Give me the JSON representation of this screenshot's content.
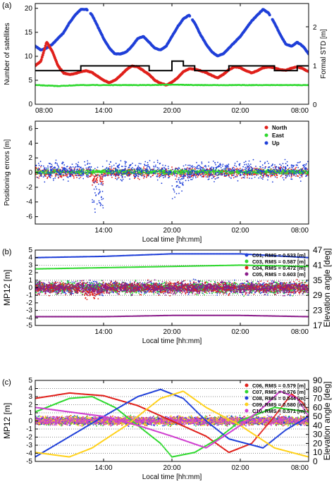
{
  "chart_data": [
    {
      "id": "a1",
      "panel_label": "(a)",
      "type": "line",
      "xlim": [
        0,
        24
      ],
      "x_ticks": [
        0,
        6,
        12,
        18,
        24
      ],
      "x_tick_labels": [
        "08:00",
        "14:00",
        "20:00",
        "02:00",
        "08:00"
      ],
      "ylabel": "Number of satellites",
      "ylim": [
        0,
        21
      ],
      "y_ticks": [
        0,
        5,
        10,
        15,
        20
      ],
      "y2label": "Formal STD [m]",
      "y2lim": [
        0,
        2.6
      ],
      "y2_ticks": [
        0,
        1,
        2
      ],
      "grid": false,
      "series": [
        {
          "axis": "right",
          "color": "#1f3fd8",
          "style": "dots",
          "points": [
            [
              0,
              1.5
            ],
            [
              0.5,
              1.4
            ],
            [
              1,
              1.45
            ],
            [
              1.5,
              1.55
            ],
            [
              2,
              1.7
            ],
            [
              2.5,
              1.85
            ],
            [
              3,
              2.1
            ],
            [
              3.5,
              2.3
            ],
            [
              4,
              2.45
            ],
            [
              4.5,
              2.45
            ],
            [
              5,
              2.3
            ],
            [
              5.5,
              2.0
            ],
            [
              6,
              1.7
            ],
            [
              6.5,
              1.45
            ],
            [
              7,
              1.3
            ],
            [
              7.5,
              1.3
            ],
            [
              8,
              1.35
            ],
            [
              8.5,
              1.5
            ],
            [
              9,
              1.7
            ],
            [
              9.5,
              1.75
            ],
            [
              10,
              1.6
            ],
            [
              10.5,
              1.45
            ],
            [
              11,
              1.4
            ],
            [
              11.5,
              1.5
            ],
            [
              12,
              1.75
            ],
            [
              12.5,
              2.0
            ],
            [
              13,
              2.2
            ],
            [
              13.5,
              2.3
            ],
            [
              14,
              2.1
            ],
            [
              14.5,
              1.8
            ],
            [
              15,
              1.55
            ],
            [
              15.5,
              1.35
            ],
            [
              16,
              1.25
            ],
            [
              16.5,
              1.3
            ],
            [
              17,
              1.45
            ],
            [
              17.5,
              1.6
            ],
            [
              18,
              1.75
            ],
            [
              18.5,
              1.95
            ],
            [
              19,
              2.15
            ],
            [
              19.5,
              2.3
            ],
            [
              20,
              2.45
            ],
            [
              20.5,
              2.35
            ],
            [
              21,
              2.1
            ],
            [
              21.5,
              1.8
            ],
            [
              22,
              1.55
            ],
            [
              22.5,
              1.5
            ],
            [
              23,
              1.6
            ],
            [
              23.5,
              1.5
            ],
            [
              24,
              1.3
            ]
          ]
        },
        {
          "axis": "left",
          "color": "#e0201b",
          "style": "dots",
          "points": [
            [
              0,
              8
            ],
            [
              0.5,
              9
            ],
            [
              1,
              13
            ],
            [
              1.5,
              11
            ],
            [
              2,
              8
            ],
            [
              2.5,
              6.5
            ],
            [
              3,
              6.2
            ],
            [
              3.5,
              6.4
            ],
            [
              4,
              6.8
            ],
            [
              4.5,
              7
            ],
            [
              5,
              6.6
            ],
            [
              5.5,
              5.8
            ],
            [
              6,
              5
            ],
            [
              6.5,
              4.5
            ],
            [
              7,
              5
            ],
            [
              7.5,
              6
            ],
            [
              8,
              7.2
            ],
            [
              8.5,
              8
            ],
            [
              9,
              7.8
            ],
            [
              9.5,
              7
            ],
            [
              10,
              6.2
            ],
            [
              10.5,
              5
            ],
            [
              11,
              4.4
            ],
            [
              11.5,
              4
            ],
            [
              12,
              4.6
            ],
            [
              12.5,
              5.5
            ],
            [
              13,
              6.8
            ],
            [
              13.5,
              7.4
            ],
            [
              14,
              7.3
            ],
            [
              14.5,
              7
            ],
            [
              15,
              6.6
            ],
            [
              15.5,
              6
            ],
            [
              16,
              5.5
            ],
            [
              16.5,
              6.2
            ],
            [
              17,
              7.2
            ],
            [
              17.5,
              7.8
            ],
            [
              18,
              7.6
            ],
            [
              18.5,
              7
            ],
            [
              19,
              6.5
            ],
            [
              19.5,
              7
            ],
            [
              20,
              7.6
            ],
            [
              20.5,
              7.8
            ],
            [
              21,
              7.6
            ],
            [
              21.5,
              7.2
            ],
            [
              22,
              7.1
            ],
            [
              22.5,
              7.5
            ],
            [
              23,
              7.8
            ],
            [
              23.5,
              7.4
            ],
            [
              24,
              6.8
            ]
          ]
        },
        {
          "axis": "left",
          "color": "#000000",
          "style": "step",
          "points": [
            [
              0,
              7
            ],
            [
              4,
              7
            ],
            [
              4,
              8
            ],
            [
              10,
              8
            ],
            [
              10,
              7
            ],
            [
              12,
              7
            ],
            [
              12,
              9
            ],
            [
              13,
              9
            ],
            [
              13,
              8
            ],
            [
              14,
              8
            ],
            [
              14,
              7
            ],
            [
              17,
              7
            ],
            [
              17,
              8
            ],
            [
              21,
              8
            ],
            [
              21,
              7
            ],
            [
              23,
              7
            ],
            [
              23,
              8
            ],
            [
              24,
              8
            ]
          ]
        },
        {
          "axis": "left",
          "color": "#2ed82e",
          "style": "dots",
          "points": [
            [
              0,
              4
            ],
            [
              2,
              3.8
            ],
            [
              4,
              4
            ],
            [
              6,
              4
            ],
            [
              8,
              4
            ],
            [
              10,
              4
            ],
            [
              12,
              4.1
            ],
            [
              14,
              4
            ],
            [
              16,
              4
            ],
            [
              18,
              4
            ],
            [
              20,
              4
            ],
            [
              22,
              4
            ],
            [
              24,
              4
            ]
          ]
        }
      ]
    },
    {
      "id": "a2",
      "type": "scatter",
      "xlim": [
        0,
        24
      ],
      "x_ticks": [
        6,
        12,
        18,
        24
      ],
      "x_tick_labels": [
        "14:00",
        "20:00",
        "02:00",
        "08:00"
      ],
      "xlabel": "Local time [hh:mm]",
      "ylabel": "Positioning errors [m]",
      "ylim": [
        -7,
        7
      ],
      "y_ticks": [
        -6,
        -4,
        -2,
        0,
        2,
        4,
        6
      ],
      "legend": "top-right",
      "series": [
        {
          "name": "North",
          "color": "#e0201b",
          "center": 0.0,
          "spread": 0.8
        },
        {
          "name": "East",
          "color": "#2ed82e",
          "center": 0.1,
          "spread": 0.4
        },
        {
          "name": "Up",
          "color": "#1f3fd8",
          "center": 0.3,
          "spread": 1.6,
          "dips": [
            [
              5.5,
              -5.5
            ],
            [
              12.5,
              -3.0
            ]
          ]
        }
      ]
    },
    {
      "id": "b",
      "panel_label": "(b)",
      "type": "scatter",
      "xlim": [
        0,
        24
      ],
      "x_ticks": [
        6,
        12,
        18,
        24
      ],
      "x_tick_labels": [
        "14:00",
        "20:00",
        "02:00",
        "08:00"
      ],
      "xlabel": "Local time [hh:mm]",
      "ylabel": "MP12 [m]",
      "ylim": [
        -5,
        5
      ],
      "y_ticks": [
        -5,
        -4,
        -3,
        -2,
        -1,
        0,
        1,
        2,
        3,
        4,
        5
      ],
      "y2label": "Elevation angle [deg]",
      "y2lim": [
        17,
        47
      ],
      "y2_ticks": [
        17,
        23,
        29,
        35,
        41,
        47
      ],
      "dotted_hlines": [
        -3,
        -1,
        1,
        3
      ],
      "legend": "top-right",
      "series": [
        {
          "name": "C01, RMS = 0.533 [m]",
          "color": "#1f3fd8",
          "elev": [
            [
              0,
              44
            ],
            [
              6,
              44.5
            ],
            [
              12,
              45.5
            ],
            [
              18,
              45.5
            ],
            [
              24,
              44
            ]
          ]
        },
        {
          "name": "C03, RMS = 0.587 [m]",
          "color": "#2ed82e",
          "elev": [
            [
              0,
              39.5
            ],
            [
              6,
              40
            ],
            [
              12,
              40.5
            ],
            [
              18,
              41
            ],
            [
              24,
              40.5
            ]
          ]
        },
        {
          "name": "C04, RMS = 0.472 [m]",
          "color": "#e0201b",
          "elev": []
        },
        {
          "name": "C05, RMS = 0.603 [m]",
          "color": "#8a1d8a",
          "elev": [
            [
              0,
              20.5
            ],
            [
              6,
              20.5
            ],
            [
              12,
              21
            ],
            [
              18,
              21
            ],
            [
              24,
              20.5
            ]
          ]
        }
      ]
    },
    {
      "id": "c",
      "panel_label": "(c)",
      "type": "scatter",
      "xlim": [
        0,
        24
      ],
      "x_ticks": [
        6,
        12,
        18,
        24
      ],
      "x_tick_labels": [
        "14:00",
        "20:00",
        "02:00",
        "08:00"
      ],
      "xlabel": "Local time [hh:mm]",
      "ylabel": "MP12 [m]",
      "ylim": [
        -5,
        5
      ],
      "y_ticks": [
        -5,
        -4,
        -3,
        -2,
        -1,
        0,
        1,
        2,
        3,
        4,
        5
      ],
      "y2label": "Elevation angle [deg]",
      "y2lim": [
        0,
        90
      ],
      "y2_ticks": [
        0,
        10,
        20,
        30,
        40,
        50,
        60,
        70,
        80,
        90
      ],
      "dotted_hlines": [
        -4,
        -3,
        -2,
        -1,
        0,
        1,
        2,
        3,
        4
      ],
      "legend": "top-right",
      "series": [
        {
          "name": "C06, RMS = 0.579 [m]",
          "color": "#e0201b",
          "elev": [
            [
              0,
              70
            ],
            [
              3,
              76
            ],
            [
              6,
              73
            ],
            [
              9,
              62
            ],
            [
              12,
              45
            ],
            [
              15,
              28
            ],
            [
              17,
              10
            ],
            [
              19,
              20
            ],
            [
              21,
              50
            ],
            [
              22.5,
              75
            ],
            [
              23.5,
              65
            ],
            [
              24,
              55
            ]
          ]
        },
        {
          "name": "C07, RMS = 0.576 [m]",
          "color": "#2ed82e",
          "elev": [
            [
              0,
              55
            ],
            [
              3,
              70
            ],
            [
              5,
              72
            ],
            [
              7,
              60
            ],
            [
              9,
              40
            ],
            [
              11,
              20
            ],
            [
              12,
              5
            ],
            [
              14,
              10
            ],
            [
              16,
              25
            ],
            [
              18,
              45
            ],
            [
              21,
              60
            ],
            [
              24,
              55
            ]
          ]
        },
        {
          "name": "C08, RMS = 0.544 [m]",
          "color": "#1f3fd8",
          "elev": [
            [
              0,
              5
            ],
            [
              2,
              20
            ],
            [
              6,
              50
            ],
            [
              9,
              72
            ],
            [
              11,
              80
            ],
            [
              13,
              70
            ],
            [
              15,
              45
            ],
            [
              17,
              25
            ],
            [
              20,
              15
            ],
            [
              22,
              35
            ],
            [
              24,
              50
            ]
          ]
        },
        {
          "name": "C09, RMS = 0.580 [m]",
          "color": "#ffd11a",
          "elev": [
            [
              0,
              10
            ],
            [
              3,
              5
            ],
            [
              5,
              15
            ],
            [
              8,
              40
            ],
            [
              11,
              70
            ],
            [
              13,
              78
            ],
            [
              15,
              60
            ],
            [
              18,
              40
            ],
            [
              21,
              15
            ],
            [
              24,
              5
            ]
          ]
        },
        {
          "name": "C10, RMS = 0.571 [m]",
          "color": "#d040d0",
          "elev": [
            [
              0,
              60
            ],
            [
              3,
              55
            ],
            [
              6,
              50
            ],
            [
              9,
              40
            ],
            [
              12,
              28
            ],
            [
              15,
              15
            ],
            [
              18,
              40
            ],
            [
              20,
              60
            ],
            [
              21.5,
              78
            ],
            [
              23,
              70
            ],
            [
              24,
              50
            ]
          ]
        }
      ]
    }
  ]
}
